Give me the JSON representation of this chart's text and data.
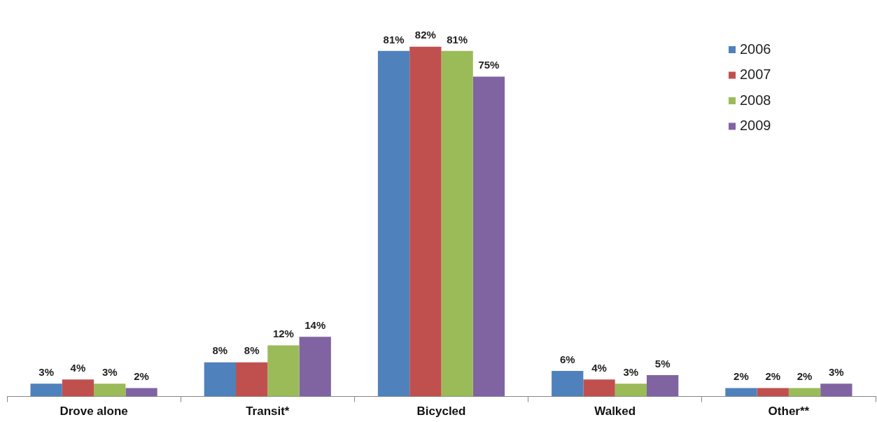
{
  "chart_data": {
    "type": "bar",
    "categories": [
      "Drove alone",
      "Transit*",
      "Bicycled",
      "Walked",
      "Other**"
    ],
    "series": [
      {
        "name": "2006",
        "color": "#4f81bd",
        "values": [
          3,
          8,
          81,
          6,
          2
        ],
        "value_labels": [
          "3%",
          "8%",
          "81%",
          "6%",
          "2%"
        ]
      },
      {
        "name": "2007",
        "color": "#c0504d",
        "values": [
          4,
          8,
          82,
          4,
          2
        ],
        "value_labels": [
          "4%",
          "8%",
          "82%",
          "4%",
          "2%"
        ]
      },
      {
        "name": "2008",
        "color": "#9bbb59",
        "values": [
          3,
          12,
          81,
          3,
          2
        ],
        "value_labels": [
          "3%",
          "12%",
          "81%",
          "3%",
          "2%"
        ]
      },
      {
        "name": "2009",
        "color": "#8064a2",
        "values": [
          2,
          14,
          75,
          5,
          3
        ],
        "value_labels": [
          "2%",
          "14%",
          "75%",
          "5%",
          "3%"
        ]
      }
    ],
    "legend": "top right",
    "grid": false
  }
}
